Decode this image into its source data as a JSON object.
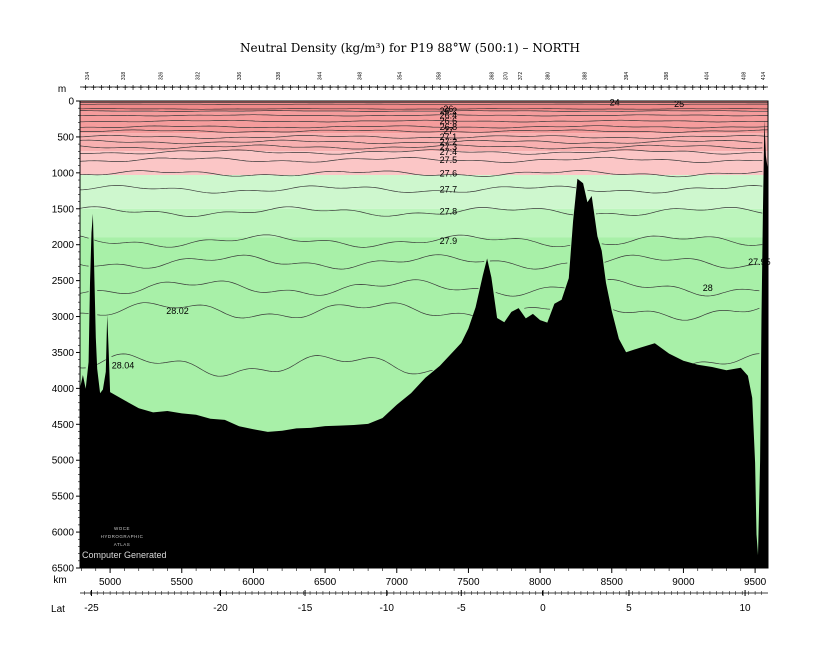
{
  "chart_data": {
    "type": "area",
    "title": "Neutral Density (kg/m³) for P19 88°W (500:1) – NORTH",
    "y_unit_label": "m",
    "x_unit_label": "km",
    "lat_label": "Lat",
    "ylim": [
      6500,
      0
    ],
    "xlim": [
      4790,
      9590
    ],
    "y_ticks": [
      0,
      500,
      1000,
      1500,
      2000,
      2500,
      3000,
      3500,
      4000,
      4500,
      5000,
      5500,
      6000,
      6500
    ],
    "x_ticks": [
      5000,
      5500,
      6000,
      6500,
      7000,
      7500,
      8000,
      8500,
      9000,
      9500
    ],
    "lat_ticks": [
      {
        "label": "-25",
        "km": 4870
      },
      {
        "label": "-20",
        "km": 5770
      },
      {
        "label": "-15",
        "km": 6360
      },
      {
        "label": "-10",
        "km": 6930
      },
      {
        "label": "-5",
        "km": 7450
      },
      {
        "label": "0",
        "km": 8020
      },
      {
        "label": "5",
        "km": 8620
      },
      {
        "label": "10",
        "km": 9430
      }
    ],
    "station_labels": [
      {
        "label": "314",
        "km": 4840
      },
      {
        "label": "318",
        "km": 5090
      },
      {
        "label": "326",
        "km": 5350
      },
      {
        "label": "332",
        "km": 5610
      },
      {
        "label": "336",
        "km": 5900
      },
      {
        "label": "338",
        "km": 6170
      },
      {
        "label": "344",
        "km": 6460
      },
      {
        "label": "348",
        "km": 6740
      },
      {
        "label": "354",
        "km": 7020
      },
      {
        "label": "358",
        "km": 7290
      },
      {
        "label": "368",
        "km": 7660
      },
      {
        "label": "370",
        "km": 7760
      },
      {
        "label": "372",
        "km": 7860
      },
      {
        "label": "380",
        "km": 8050
      },
      {
        "label": "388",
        "km": 8310
      },
      {
        "label": "394",
        "km": 8600
      },
      {
        "label": "398",
        "km": 8880
      },
      {
        "label": "404",
        "km": 9160
      },
      {
        "label": "408",
        "km": 9420
      },
      {
        "label": "414",
        "km": 9555
      }
    ],
    "density_bands": [
      {
        "top": 0,
        "bottom": 150,
        "color": "#f08a8a"
      },
      {
        "top": 150,
        "bottom": 450,
        "color": "#f59c9c"
      },
      {
        "top": 450,
        "bottom": 700,
        "color": "#f8b0b0"
      },
      {
        "top": 700,
        "bottom": 1030,
        "color": "#fbc6c6"
      },
      {
        "top": 1030,
        "bottom": 1500,
        "color": "#cef7ce"
      },
      {
        "top": 1500,
        "bottom": 1900,
        "color": "#bcf5bc"
      },
      {
        "top": 1900,
        "bottom": 6500,
        "color": "#a8f0a8"
      }
    ],
    "contours": [
      {
        "label": "24",
        "depth": 20
      },
      {
        "label": "25",
        "depth": 45
      },
      {
        "label": "26",
        "depth": 110
      },
      {
        "label": "26.2",
        "depth": 140
      },
      {
        "label": "26.4",
        "depth": 200
      },
      {
        "label": "26.6",
        "depth": 280
      },
      {
        "label": "26.8",
        "depth": 360
      },
      {
        "label": "27",
        "depth": 420
      },
      {
        "label": "27.1",
        "depth": 500
      },
      {
        "label": "27.2",
        "depth": 570
      },
      {
        "label": "27.3",
        "depth": 640
      },
      {
        "label": "27.4",
        "depth": 710
      },
      {
        "label": "27.5",
        "depth": 820
      },
      {
        "label": "27.6",
        "depth": 1010
      },
      {
        "label": "27.7",
        "depth": 1230
      },
      {
        "label": "27.8",
        "depth": 1540
      },
      {
        "label": "27.9",
        "depth": 1950
      },
      {
        "label": "27.95",
        "depth": 2240
      },
      {
        "label": "28",
        "depth": 2600
      },
      {
        "label": "28.02",
        "depth": 2920
      },
      {
        "label": "28.04",
        "depth": 3680
      }
    ],
    "bathymetry": [
      [
        4790,
        4000
      ],
      [
        4810,
        3800
      ],
      [
        4830,
        3980
      ],
      [
        4850,
        3600
      ],
      [
        4860,
        2500
      ],
      [
        4870,
        1800
      ],
      [
        4880,
        1550
      ],
      [
        4890,
        2400
      ],
      [
        4900,
        3300
      ],
      [
        4910,
        3750
      ],
      [
        4930,
        4100
      ],
      [
        4950,
        4050
      ],
      [
        4970,
        3800
      ],
      [
        4980,
        3000
      ],
      [
        4990,
        3500
      ],
      [
        5000,
        4050
      ],
      [
        5100,
        4150
      ],
      [
        5200,
        4250
      ],
      [
        5300,
        4300
      ],
      [
        5400,
        4280
      ],
      [
        5500,
        4320
      ],
      [
        5600,
        4350
      ],
      [
        5700,
        4420
      ],
      [
        5800,
        4450
      ],
      [
        5900,
        4550
      ],
      [
        6000,
        4600
      ],
      [
        6100,
        4640
      ],
      [
        6200,
        4620
      ],
      [
        6300,
        4580
      ],
      [
        6400,
        4560
      ],
      [
        6500,
        4520
      ],
      [
        6600,
        4500
      ],
      [
        6700,
        4480
      ],
      [
        6800,
        4460
      ],
      [
        6900,
        4380
      ],
      [
        7000,
        4200
      ],
      [
        7100,
        4050
      ],
      [
        7200,
        3850
      ],
      [
        7300,
        3700
      ],
      [
        7400,
        3500
      ],
      [
        7450,
        3400
      ],
      [
        7500,
        3200
      ],
      [
        7550,
        2900
      ],
      [
        7600,
        2450
      ],
      [
        7630,
        2200
      ],
      [
        7660,
        2450
      ],
      [
        7700,
        3000
      ],
      [
        7750,
        3050
      ],
      [
        7800,
        2900
      ],
      [
        7850,
        2850
      ],
      [
        7900,
        3000
      ],
      [
        7950,
        2950
      ],
      [
        8000,
        3050
      ],
      [
        8050,
        3100
      ],
      [
        8100,
        2850
      ],
      [
        8150,
        2800
      ],
      [
        8200,
        2500
      ],
      [
        8230,
        1700
      ],
      [
        8260,
        1100
      ],
      [
        8300,
        1150
      ],
      [
        8330,
        1400
      ],
      [
        8360,
        1300
      ],
      [
        8400,
        1850
      ],
      [
        8430,
        2050
      ],
      [
        8460,
        2500
      ],
      [
        8500,
        2900
      ],
      [
        8550,
        3300
      ],
      [
        8600,
        3500
      ],
      [
        8700,
        3450
      ],
      [
        8800,
        3400
      ],
      [
        8900,
        3550
      ],
      [
        9000,
        3650
      ],
      [
        9100,
        3700
      ],
      [
        9200,
        3720
      ],
      [
        9300,
        3750
      ],
      [
        9400,
        3700
      ],
      [
        9450,
        3800
      ],
      [
        9480,
        4100
      ],
      [
        9500,
        5000
      ],
      [
        9510,
        6000
      ],
      [
        9520,
        6300
      ],
      [
        9535,
        5000
      ],
      [
        9545,
        3000
      ],
      [
        9555,
        1500
      ],
      [
        9565,
        300
      ],
      [
        9575,
        800
      ],
      [
        9590,
        1000
      ]
    ],
    "grid": false
  },
  "labels": {
    "y_axis_unit": "m",
    "x_axis_unit": "km",
    "lat_axis": "Lat",
    "logo_lines": [
      "WOCE",
      "HYDROGRAPHIC",
      "ATLAS"
    ],
    "generated_note": "Computer Generated"
  }
}
